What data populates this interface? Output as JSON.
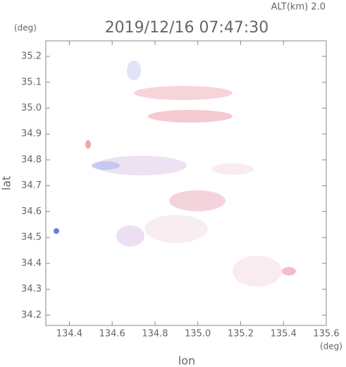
{
  "chart_data": {
    "type": "heatmap",
    "title": "2019/12/16 07:47:30",
    "subtitle": "ALT(km) 2.0",
    "x_label": "lon",
    "y_label": "lat",
    "x_unit": "(deg)",
    "y_unit": "(deg)",
    "xlim": [
      134.29,
      135.6
    ],
    "ylim": [
      34.16,
      35.26
    ],
    "xticks": [
      134.4,
      134.6,
      134.8,
      {
        "value": 135.0,
        "label": "135.0"
      },
      135.2,
      135.4,
      135.6
    ],
    "yticks": [
      34.2,
      34.3,
      34.4,
      34.5,
      34.6,
      34.7,
      34.8,
      34.9,
      {
        "value": 35.0,
        "label": "35.0"
      },
      35.1,
      35.2
    ]
  }
}
